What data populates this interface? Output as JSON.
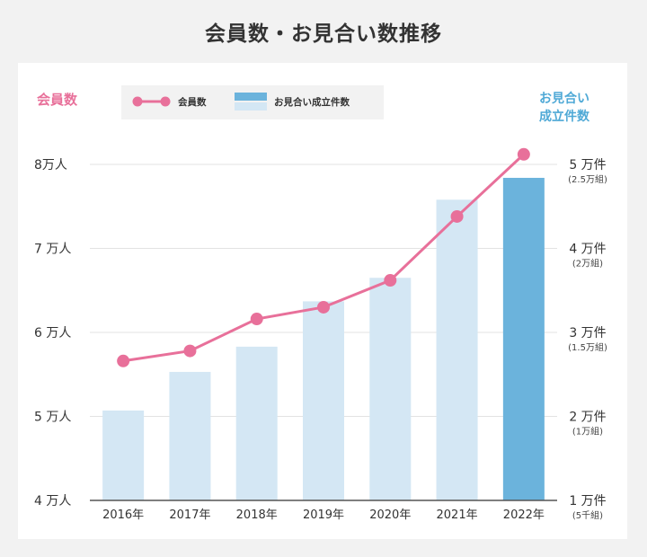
{
  "title": "会員数・お見合い数推移",
  "chart_data": {
    "type": "bar",
    "categories": [
      "2016年",
      "2017年",
      "2018年",
      "2019年",
      "2020年",
      "2021年",
      "2022年"
    ],
    "left_axis": {
      "title": "会員数",
      "ticks": [
        {
          "value": 40000,
          "label": "4 万人"
        },
        {
          "value": 50000,
          "label": "5 万人"
        },
        {
          "value": 60000,
          "label": "6 万人"
        },
        {
          "value": 70000,
          "label": "7 万人"
        },
        {
          "value": 80000,
          "label": "8万人"
        }
      ],
      "range": [
        40000,
        80000
      ]
    },
    "right_axis": {
      "title_lines": [
        "お見合い",
        "成立件数"
      ],
      "ticks": [
        {
          "value": 10000,
          "label": "1 万件",
          "sublabel": "(5千組)"
        },
        {
          "value": 20000,
          "label": "2 万件",
          "sublabel": "(1万組)"
        },
        {
          "value": 30000,
          "label": "3 万件",
          "sublabel": "(1.5万組)"
        },
        {
          "value": 40000,
          "label": "4 万件",
          "sublabel": "(2万組)"
        },
        {
          "value": 50000,
          "label": "5 万件",
          "sublabel": "(2.5万組)"
        }
      ],
      "range": [
        10000,
        50000
      ]
    },
    "series": [
      {
        "name": "会員数",
        "kind": "line",
        "axis": "left",
        "color": "#e8709a",
        "values": [
          56600,
          57800,
          61600,
          63000,
          66200,
          73800,
          81200
        ]
      },
      {
        "name": "お見合い成立件数",
        "kind": "bar",
        "axis": "right",
        "color": "#d4e7f4",
        "highlight_color": "#6bb3dc",
        "highlight_index": 6,
        "values": [
          20700,
          25300,
          28300,
          33700,
          36500,
          45800,
          48400
        ]
      }
    ],
    "legend": {
      "position": "top"
    },
    "grid": true
  }
}
